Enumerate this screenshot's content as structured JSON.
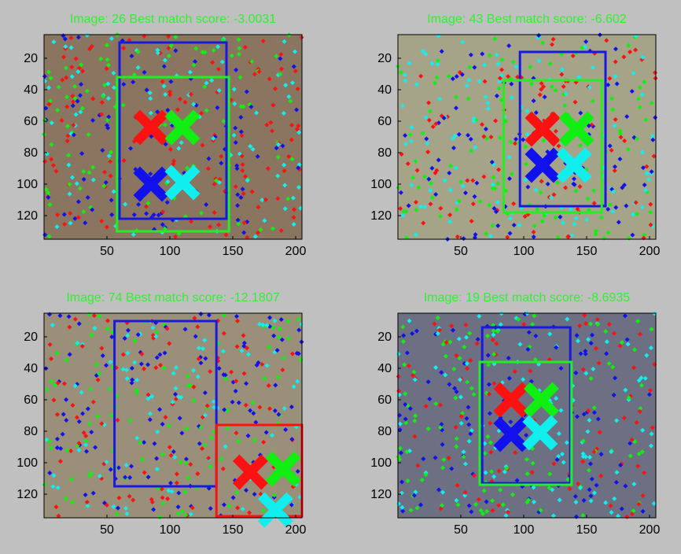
{
  "panels": [
    {
      "title": "Image: 26 Best match score: -3.0031",
      "xticks": [
        "50",
        "100",
        "150",
        "200"
      ],
      "yticks": [
        "20",
        "40",
        "60",
        "80",
        "100",
        "120"
      ],
      "bg": "#8a7560",
      "boxes": [
        {
          "name": "face-box-blue",
          "color": "#1a1adf",
          "x0": 60,
          "y0": 10,
          "x1": 145,
          "y1": 122
        },
        {
          "name": "face-box-green",
          "color": "#22ee22",
          "x0": 58,
          "y0": 32,
          "x1": 147,
          "y1": 130
        }
      ],
      "markers": [
        {
          "name": "marker-red",
          "color": "#ff1111",
          "x": 85,
          "y": 64
        },
        {
          "name": "marker-green",
          "color": "#11ee11",
          "x": 110,
          "y": 64
        },
        {
          "name": "marker-blue",
          "color": "#1111ee",
          "x": 85,
          "y": 100
        },
        {
          "name": "marker-cyan",
          "color": "#11eeee",
          "x": 110,
          "y": 99
        }
      ]
    },
    {
      "title": "Image: 43 Best match score: -6.602",
      "xticks": [
        "50",
        "100",
        "150",
        "200"
      ],
      "yticks": [
        "20",
        "40",
        "60",
        "80",
        "100",
        "120"
      ],
      "bg": "#a6a488",
      "boxes": [
        {
          "name": "face-box-blue",
          "color": "#1a1adf",
          "x0": 97,
          "y0": 16,
          "x1": 165,
          "y1": 114
        },
        {
          "name": "face-box-green",
          "color": "#22ee22",
          "x0": 84,
          "y0": 34,
          "x1": 162,
          "y1": 118
        }
      ],
      "markers": [
        {
          "name": "marker-red",
          "color": "#ff1111",
          "x": 115,
          "y": 65
        },
        {
          "name": "marker-green",
          "color": "#11ee11",
          "x": 142,
          "y": 65
        },
        {
          "name": "marker-blue",
          "color": "#1111ee",
          "x": 115,
          "y": 88
        },
        {
          "name": "marker-cyan",
          "color": "#11eeee",
          "x": 140,
          "y": 88
        }
      ]
    },
    {
      "title": "Image: 74 Best match score: -12.1807",
      "xticks": [
        "50",
        "100",
        "150",
        "200"
      ],
      "yticks": [
        "20",
        "40",
        "60",
        "80",
        "100",
        "120"
      ],
      "bg": "#9a8f78",
      "boxes": [
        {
          "name": "face-box-blue",
          "color": "#1a1adf",
          "x0": 56,
          "y0": 10,
          "x1": 137,
          "y1": 115
        },
        {
          "name": "face-box-red",
          "color": "#ff1111",
          "x0": 137,
          "y0": 76,
          "x1": 205,
          "y1": 134
        }
      ],
      "markers": [
        {
          "name": "marker-red",
          "color": "#ff1111",
          "x": 164,
          "y": 106
        },
        {
          "name": "marker-green",
          "color": "#11ee11",
          "x": 190,
          "y": 104
        },
        {
          "name": "marker-cyan",
          "color": "#11eeee",
          "x": 184,
          "y": 130
        }
      ]
    },
    {
      "title": "Image: 19 Best match score: -8.6935",
      "xticks": [
        "50",
        "100",
        "150",
        "200"
      ],
      "yticks": [
        "20",
        "40",
        "60",
        "80",
        "100",
        "120"
      ],
      "bg": "#6c7082",
      "boxes": [
        {
          "name": "face-box-blue",
          "color": "#1a1adf",
          "x0": 67,
          "y0": 14,
          "x1": 137,
          "y1": 113
        },
        {
          "name": "face-box-green",
          "color": "#22ee22",
          "x0": 65,
          "y0": 36,
          "x1": 138,
          "y1": 114
        }
      ],
      "markers": [
        {
          "name": "marker-red",
          "color": "#ff1111",
          "x": 90,
          "y": 60
        },
        {
          "name": "marker-green",
          "color": "#11ee11",
          "x": 114,
          "y": 60
        },
        {
          "name": "marker-blue",
          "color": "#1111ee",
          "x": 90,
          "y": 82
        },
        {
          "name": "marker-cyan",
          "color": "#11eeee",
          "x": 113,
          "y": 81
        }
      ]
    }
  ]
}
